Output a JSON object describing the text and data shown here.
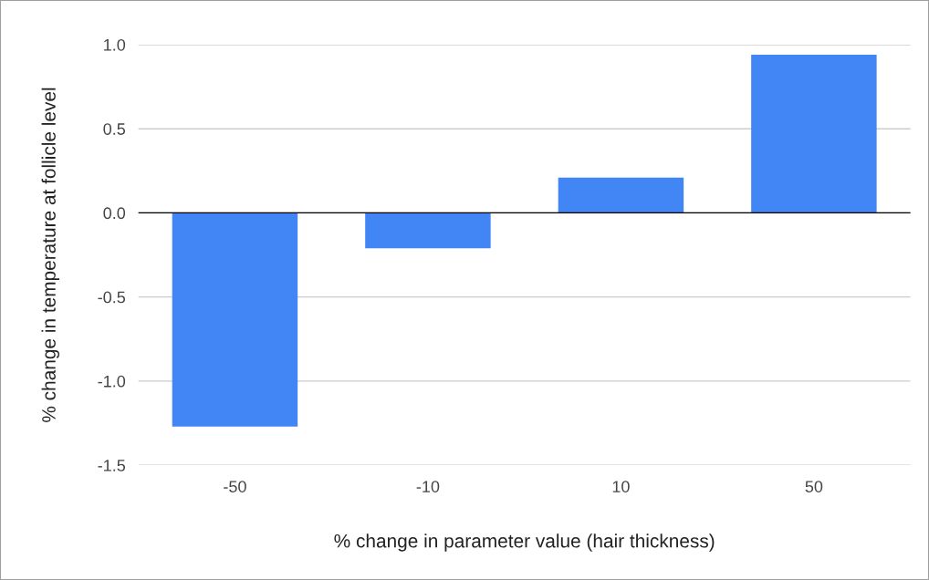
{
  "chart_data": {
    "type": "bar",
    "xlabel": "% change in parameter value (hair thickness)",
    "ylabel": "% change in temperature at follicle level",
    "categories": [
      "-50",
      "-10",
      "10",
      "50"
    ],
    "values": [
      -1.27,
      -0.21,
      0.21,
      0.94
    ],
    "color": "#4285f4",
    "ylim": [
      -1.5,
      1.0
    ],
    "yticks": [
      {
        "value": -1.5,
        "label": "-1.5"
      },
      {
        "value": -1.0,
        "label": "-1.0"
      },
      {
        "value": -0.5,
        "label": "-0.5"
      },
      {
        "value": 0,
        "label": "0.0"
      },
      {
        "value": 0.5,
        "label": "0.5"
      },
      {
        "value": 1.0,
        "label": "1.0"
      }
    ],
    "grid": "y"
  }
}
